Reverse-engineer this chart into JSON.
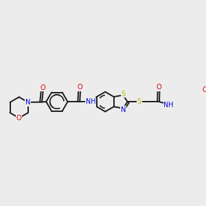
{
  "bg_color": "#ececec",
  "bond_color": "#1a1a1a",
  "bond_width": 1.4,
  "figsize": [
    3.0,
    3.0
  ],
  "dpi": 100,
  "colors": {
    "N": "#0000e0",
    "O": "#e00000",
    "S": "#b8b800",
    "C": "#1a1a1a"
  },
  "font_size": 7.2,
  "xlim": [
    0,
    3.0
  ],
  "ylim": [
    0,
    3.0
  ]
}
